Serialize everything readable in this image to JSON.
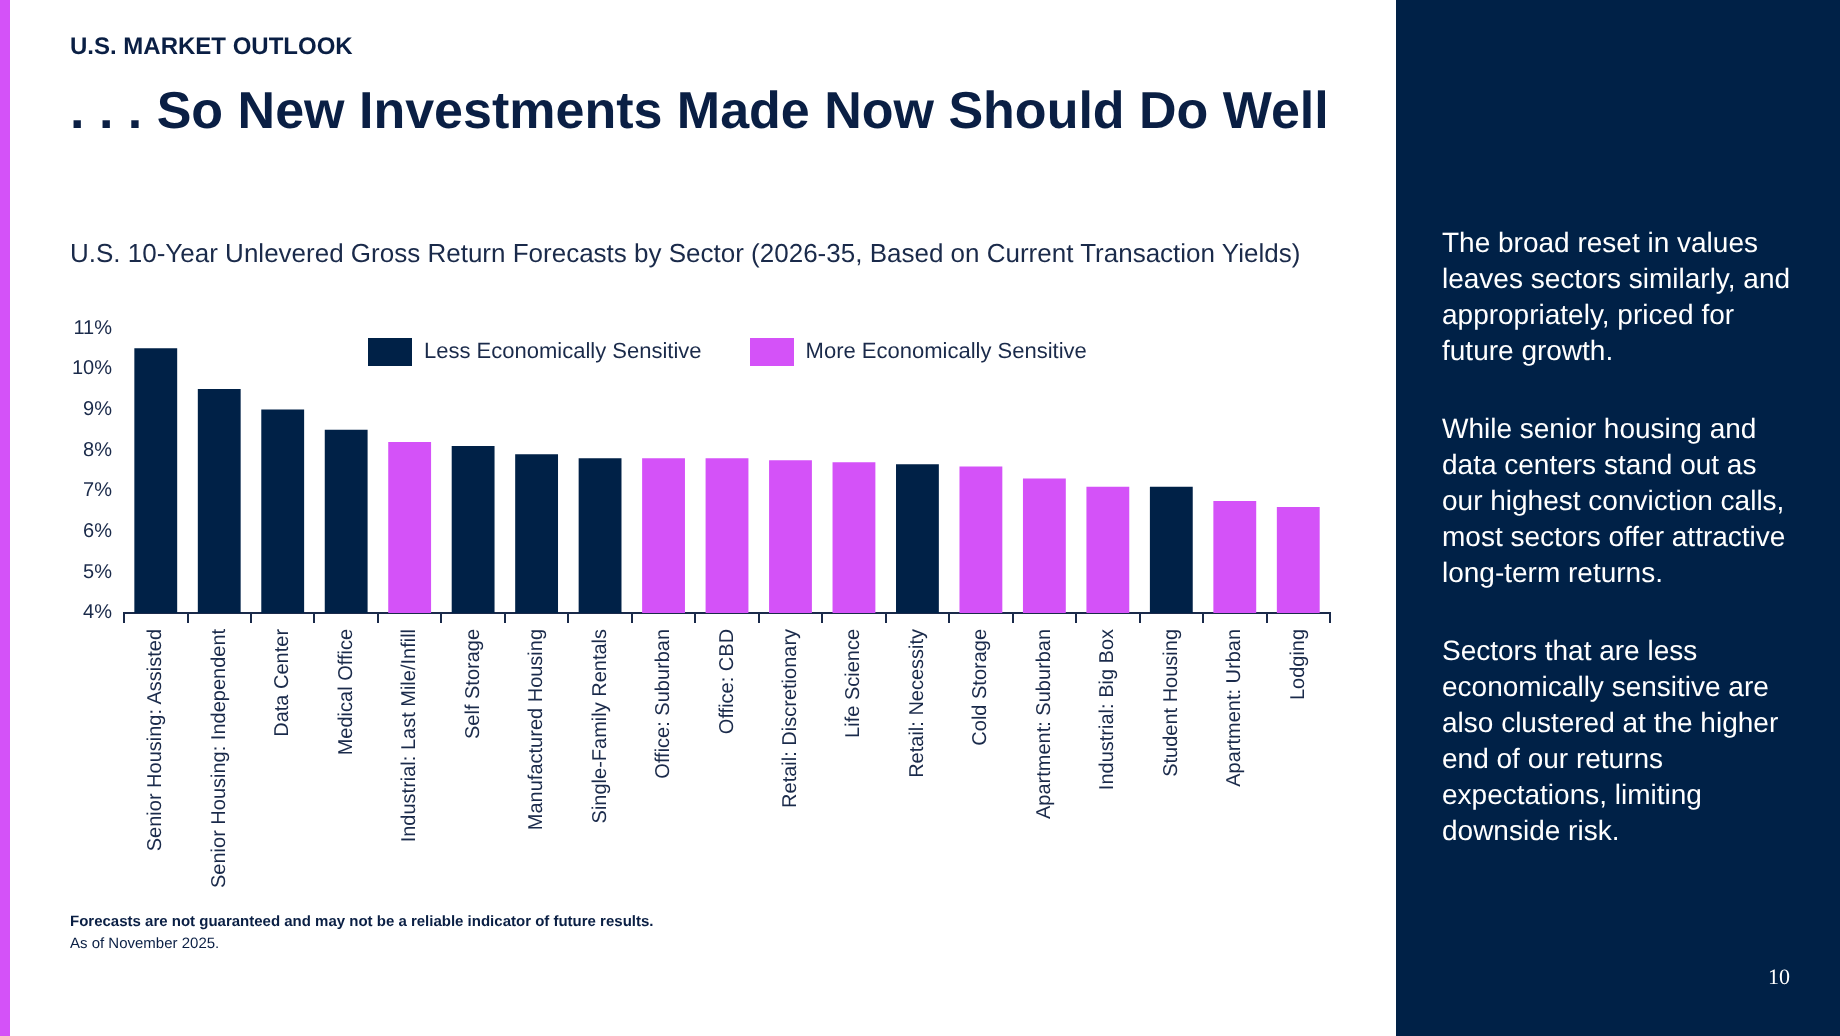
{
  "chart_data": {
    "type": "bar",
    "title": "U.S. 10-Year Unlevered Gross Return Forecasts by Sector (2026-35, Based on Current Transaction Yields)",
    "categories": [
      "Senior Housing: Assisted",
      "Senior Housing: Independent",
      "Data Center",
      "Medical Office",
      "Industrial: Last Mile/Infill",
      "Self Storage",
      "Manufactured Housing",
      "Single-Family Rentals",
      "Office: Suburban",
      "Office: CBD",
      "Retail: Discretionary",
      "Life Science",
      "Retail: Necessity",
      "Cold Storage",
      "Apartment: Suburban",
      "Industrial: Big Box",
      "Student Housing",
      "Apartment: Urban",
      "Lodging"
    ],
    "series": [
      {
        "name": "Less Economically Sensitive",
        "color": "#002147",
        "values": [
          10.5,
          9.5,
          9.0,
          8.5,
          null,
          8.1,
          7.9,
          7.8,
          null,
          null,
          null,
          null,
          7.65,
          null,
          null,
          null,
          7.1,
          null,
          null
        ]
      },
      {
        "name": "More Economically Sensitive",
        "color": "#d452f8",
        "values": [
          null,
          null,
          null,
          null,
          8.2,
          null,
          null,
          null,
          7.8,
          7.8,
          7.75,
          7.7,
          null,
          7.6,
          7.3,
          7.1,
          null,
          6.75,
          6.6
        ]
      }
    ],
    "ylim": [
      4,
      11
    ],
    "yticks": [
      {
        "value": 4,
        "label": "4%"
      },
      {
        "value": 5,
        "label": "5%"
      },
      {
        "value": 6,
        "label": "6%"
      },
      {
        "value": 7,
        "label": "7%"
      },
      {
        "value": 8,
        "label": "8%"
      },
      {
        "value": 9,
        "label": "9%"
      },
      {
        "value": 10,
        "label": "10%"
      },
      {
        "value": 11,
        "label": "11%"
      }
    ],
    "grid": false,
    "legend": "top",
    "annotations": [
      "U.S. MARKET OUTLOOK",
      ". . . So New Investments Made Now Should Do Well",
      "The broad reset in values leaves sectors similarly, and appropriately, priced for future growth.",
      "While senior housing and data centers stand out as our highest conviction calls, most sectors offer attractive long-term returns.",
      "Sectors that are less economically sensitive are also clustered at the higher end of our returns expectations, limiting downside risk.",
      "Forecasts are not guaranteed and may not be a reliable indicator of future results.",
      "As of November 2025.",
      "10"
    ]
  }
}
